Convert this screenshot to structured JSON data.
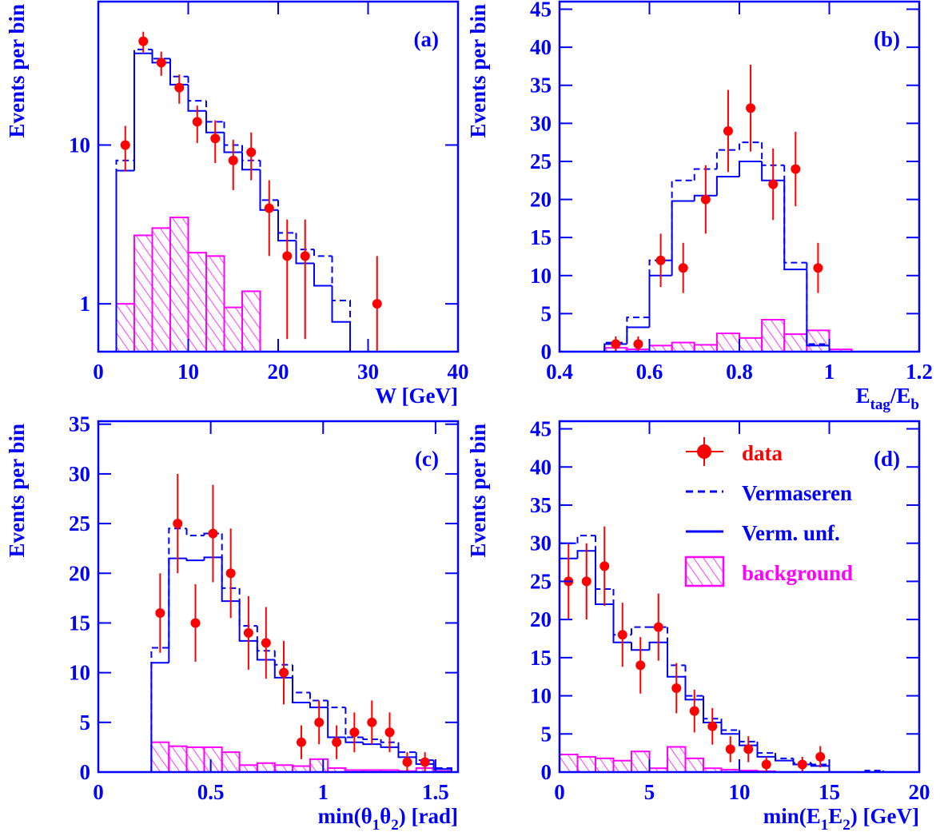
{
  "chart_data": [
    {
      "type": "histogram",
      "panel_label": "(a)",
      "ylabel": "Events per bin",
      "xlabel": [
        {
          "text": "W [GeV]",
          "sub": false
        }
      ],
      "xlim": [
        0,
        40
      ],
      "ylim": [
        0.5,
        80
      ],
      "ylog": true,
      "xticks": [
        0,
        10,
        20,
        30,
        40
      ],
      "yticks": [
        1,
        10
      ],
      "series": [
        {
          "kind": "points",
          "color": "#ff0000",
          "x": [
            3,
            5,
            7,
            9,
            11,
            13,
            15,
            17,
            19,
            21,
            23,
            31
          ],
          "values": [
            10,
            45,
            33,
            23,
            14,
            11,
            8,
            9,
            4,
            2,
            2,
            1
          ],
          "errors": [
            3.2,
            6.7,
            5.7,
            4.8,
            3.7,
            3.3,
            2.8,
            3,
            2,
            1.4,
            1.4,
            1
          ]
        },
        {
          "kind": "step",
          "style": "dashed",
          "color": "#0000ff",
          "bins": [
            2,
            4,
            6,
            8,
            10,
            12,
            14,
            16,
            18,
            20,
            22,
            24,
            26,
            28
          ],
          "values": [
            8,
            40,
            35,
            27,
            19,
            14,
            10,
            8,
            4.5,
            2.8,
            2.2,
            2.0,
            1.05
          ]
        },
        {
          "kind": "step",
          "style": "solid",
          "color": "#0000ff",
          "bins": [
            2,
            4,
            6,
            8,
            10,
            12,
            14,
            16,
            18,
            20,
            22,
            24,
            26,
            28
          ],
          "values": [
            6.9,
            37.8,
            33,
            24,
            16.4,
            12,
            9,
            7,
            3.9,
            2.5,
            1.8,
            1.3,
            0.77
          ]
        },
        {
          "kind": "hatched",
          "color": "#ff00ff",
          "bins": [
            2,
            4,
            6,
            8,
            10,
            12,
            14,
            16,
            18
          ],
          "values": [
            1.0,
            2.7,
            3.0,
            3.5,
            2.1,
            2.0,
            0.95,
            1.2
          ]
        }
      ]
    },
    {
      "type": "histogram",
      "panel_label": "(b)",
      "ylabel": "Events per bin",
      "xlabel": [
        {
          "text": "E",
          "sub": false
        },
        {
          "text": "tag",
          "sub": true
        },
        {
          "text": "/E",
          "sub": false
        },
        {
          "text": "b",
          "sub": true
        }
      ],
      "xlim": [
        0.4,
        1.2
      ],
      "ylim": [
        0,
        46
      ],
      "ylog": false,
      "xticks": [
        0.4,
        0.6,
        0.8,
        1,
        1.2
      ],
      "yticks": [
        0,
        5,
        10,
        15,
        20,
        25,
        30,
        35,
        40,
        45
      ],
      "series": [
        {
          "kind": "points",
          "color": "#ff0000",
          "x": [
            0.525,
            0.575,
            0.625,
            0.675,
            0.725,
            0.775,
            0.825,
            0.875,
            0.925,
            0.975
          ],
          "values": [
            1,
            1,
            12,
            11,
            20,
            29,
            32,
            22,
            24,
            11
          ],
          "errors": [
            1,
            1,
            3.5,
            3.3,
            4.5,
            5.4,
            5.7,
            4.7,
            4.9,
            3.3
          ]
        },
        {
          "kind": "step",
          "style": "dashed",
          "color": "#0000ff",
          "bins": [
            0.4,
            0.45,
            0.5,
            0.55,
            0.6,
            0.65,
            0.7,
            0.75,
            0.8,
            0.85,
            0.9,
            0.95,
            1.0,
            1.05,
            1.1,
            1.15,
            1.2
          ],
          "values": [
            0,
            0,
            1.2,
            4.5,
            12,
            22.5,
            24,
            26.5,
            27.5,
            24.5,
            11.7,
            1,
            0,
            0,
            0,
            0
          ]
        },
        {
          "kind": "step",
          "style": "solid",
          "color": "#0000ff",
          "bins": [
            0.4,
            0.45,
            0.5,
            0.55,
            0.6,
            0.65,
            0.7,
            0.75,
            0.8,
            0.85,
            0.9,
            0.95,
            1.0,
            1.05,
            1.1,
            1.15,
            1.2
          ],
          "values": [
            0,
            0,
            1,
            3.2,
            10,
            19.8,
            20.5,
            23,
            25,
            22.5,
            10.8,
            0.8,
            0,
            0,
            0,
            0
          ]
        },
        {
          "kind": "hatched",
          "color": "#ff00ff",
          "bins": [
            0.4,
            0.45,
            0.5,
            0.55,
            0.6,
            0.65,
            0.7,
            0.75,
            0.8,
            0.85,
            0.9,
            0.95,
            1.0,
            1.05,
            1.1,
            1.15,
            1.2
          ],
          "values": [
            0,
            0,
            0.5,
            0.3,
            0.8,
            1.2,
            0.9,
            2.4,
            1.8,
            4.2,
            2.3,
            2.8,
            0.3,
            0,
            0,
            0
          ]
        }
      ]
    },
    {
      "type": "histogram",
      "panel_label": "(c)",
      "ylabel": "Events per bin",
      "xlabel": [
        {
          "text": "min(θ",
          "sub": false
        },
        {
          "text": "1",
          "sub": true
        },
        {
          "text": "θ",
          "sub": false
        },
        {
          "text": "2",
          "sub": true
        },
        {
          "text": ") [rad]",
          "sub": false
        }
      ],
      "xlim": [
        0,
        1.6
      ],
      "ylim": [
        0,
        35.3
      ],
      "ylog": false,
      "xticks": [
        0,
        0.5,
        1,
        1.5
      ],
      "yticks": [
        0,
        5,
        10,
        15,
        20,
        25,
        30,
        35
      ],
      "series": [
        {
          "kind": "points",
          "color": "#ff0000",
          "x": [
            0.275,
            0.353,
            0.432,
            0.51,
            0.589,
            0.668,
            0.746,
            0.825,
            0.903,
            0.982,
            1.06,
            1.139,
            1.217,
            1.296,
            1.374,
            1.453
          ],
          "values": [
            16,
            25,
            15,
            24,
            20,
            14,
            13,
            10,
            3,
            5,
            3,
            4,
            5,
            4,
            1,
            1
          ],
          "errors": [
            4,
            5,
            3.9,
            4.9,
            4.5,
            3.7,
            3.6,
            3.2,
            1.7,
            2.2,
            1.7,
            2,
            2.2,
            2,
            1,
            1
          ]
        },
        {
          "kind": "step",
          "style": "dashed",
          "color": "#0000ff",
          "bins": [
            0,
            0.079,
            0.157,
            0.236,
            0.314,
            0.393,
            0.471,
            0.55,
            0.628,
            0.707,
            0.785,
            0.864,
            0.942,
            1.021,
            1.1,
            1.178,
            1.257,
            1.335,
            1.414,
            1.492,
            1.571
          ],
          "values": [
            0,
            0,
            0,
            12.5,
            24.5,
            23.8,
            24,
            18.5,
            14.7,
            12.2,
            10.8,
            8.0,
            7.2,
            6.5,
            3.5,
            3.3,
            3.0,
            2.0,
            1.2,
            0.4
          ]
        },
        {
          "kind": "step",
          "style": "solid",
          "color": "#0000ff",
          "bins": [
            0,
            0.079,
            0.157,
            0.236,
            0.314,
            0.393,
            0.471,
            0.55,
            0.628,
            0.707,
            0.785,
            0.864,
            0.942,
            1.021,
            1.1,
            1.178,
            1.257,
            1.335,
            1.414,
            1.492,
            1.571
          ],
          "values": [
            0,
            0,
            0,
            11,
            21.5,
            21.3,
            21.6,
            17.2,
            13.2,
            11.3,
            9.5,
            7.0,
            6.5,
            3.5,
            3.0,
            2.8,
            2.5,
            1.5,
            0.8,
            0.3
          ]
        },
        {
          "kind": "hatched",
          "color": "#ff00ff",
          "bins": [
            0,
            0.079,
            0.157,
            0.236,
            0.314,
            0.393,
            0.471,
            0.55,
            0.628,
            0.707,
            0.785,
            0.864,
            0.942,
            1.021,
            1.1,
            1.178,
            1.257,
            1.335,
            1.414,
            1.492,
            1.571
          ],
          "values": [
            0,
            0,
            0,
            3.0,
            2.6,
            2.5,
            2.5,
            2.0,
            0.7,
            0.9,
            0.7,
            0.6,
            1.3,
            0.4,
            0.2,
            0.2,
            0.2,
            0.1,
            0.4,
            0.1
          ]
        }
      ]
    },
    {
      "type": "histogram",
      "panel_label": "(d)",
      "ylabel": "Events per bin",
      "xlabel": [
        {
          "text": "min(E",
          "sub": false
        },
        {
          "text": "1",
          "sub": true
        },
        {
          "text": "E",
          "sub": false
        },
        {
          "text": "2",
          "sub": true
        },
        {
          "text": ") [GeV]",
          "sub": false
        }
      ],
      "xlim": [
        0,
        20
      ],
      "ylim": [
        0,
        46
      ],
      "ylog": false,
      "xticks": [
        0,
        5,
        10,
        15,
        20
      ],
      "yticks": [
        0,
        5,
        10,
        15,
        20,
        25,
        30,
        35,
        40,
        45
      ],
      "legend": "upper right",
      "series": [
        {
          "name": "data",
          "kind": "points",
          "color": "#ff0000",
          "x": [
            0.5,
            1.5,
            2.5,
            3.5,
            4.5,
            5.5,
            6.5,
            7.5,
            8.5,
            9.5,
            10.5,
            11.5,
            13.5,
            14.5
          ],
          "values": [
            25,
            25,
            27,
            18,
            14,
            19,
            11,
            8,
            6,
            3,
            3,
            1,
            1,
            2
          ],
          "errors": [
            5,
            5,
            5.2,
            4.2,
            3.7,
            4.4,
            3.3,
            2.8,
            2.4,
            1.7,
            1.7,
            1,
            1,
            1.4
          ]
        },
        {
          "name": "Vermaseren",
          "kind": "step",
          "style": "dashed",
          "color": "#0000ff",
          "bins": [
            0,
            1,
            2,
            3,
            4,
            5,
            6,
            7,
            8,
            9,
            10,
            11,
            12,
            13,
            14,
            15,
            16,
            17,
            18,
            19,
            20
          ],
          "values": [
            30,
            31,
            24,
            18,
            19,
            19,
            14,
            10,
            7,
            5.5,
            4,
            2.5,
            1.8,
            1.2,
            1,
            0,
            0,
            0.2,
            0,
            0
          ]
        },
        {
          "name": "Verm. unf.",
          "kind": "step",
          "style": "solid",
          "color": "#0000ff",
          "bins": [
            0,
            1,
            2,
            3,
            4,
            5,
            6,
            7,
            8,
            9,
            10,
            11,
            12,
            13,
            14,
            15,
            16,
            17,
            18,
            19,
            20
          ],
          "values": [
            28,
            29,
            22,
            17,
            16,
            17,
            12.5,
            9.5,
            6.5,
            5,
            3.5,
            2,
            1.5,
            1,
            0.8,
            0,
            0,
            0,
            0,
            0
          ]
        },
        {
          "name": "background",
          "kind": "hatched",
          "color": "#ff00ff",
          "bins": [
            0,
            1,
            2,
            3,
            4,
            5,
            6,
            7,
            8,
            9,
            10,
            11,
            12,
            13,
            14,
            15,
            16,
            17,
            18,
            19,
            20
          ],
          "values": [
            2.3,
            2.0,
            1.8,
            1.5,
            2.7,
            0.5,
            3.3,
            1.8,
            0.5,
            0.3,
            0.2,
            0.1,
            0,
            0,
            0,
            0,
            0,
            0,
            0,
            0
          ]
        }
      ]
    }
  ]
}
